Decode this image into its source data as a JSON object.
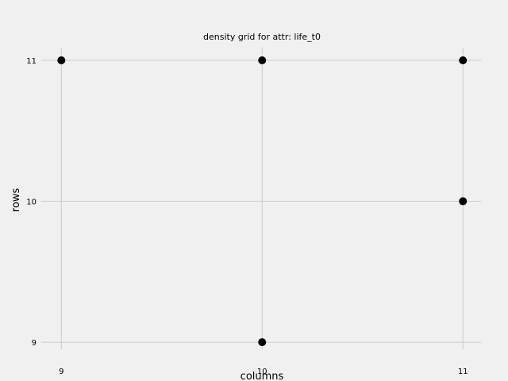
{
  "chart_data": {
    "type": "scatter",
    "title": "density grid for attr: life_t0",
    "xlabel": "columns",
    "ylabel": "rows",
    "xlim": [
      8.9,
      11.09
    ],
    "ylim": [
      8.95,
      11.09
    ],
    "xticks": [
      9,
      10,
      11
    ],
    "yticks": [
      9,
      10,
      11
    ],
    "x_tick_labels": [
      "9",
      "10",
      "11"
    ],
    "y_tick_labels": [
      "9",
      "10",
      "11"
    ],
    "grid": true,
    "points": [
      {
        "x": 9,
        "y": 11
      },
      {
        "x": 10,
        "y": 11
      },
      {
        "x": 11,
        "y": 11
      },
      {
        "x": 11,
        "y": 10
      },
      {
        "x": 10,
        "y": 9
      }
    ],
    "marker_color": "#000000",
    "background_color": "#f0f0f0",
    "grid_color": "#cbcbcb"
  }
}
